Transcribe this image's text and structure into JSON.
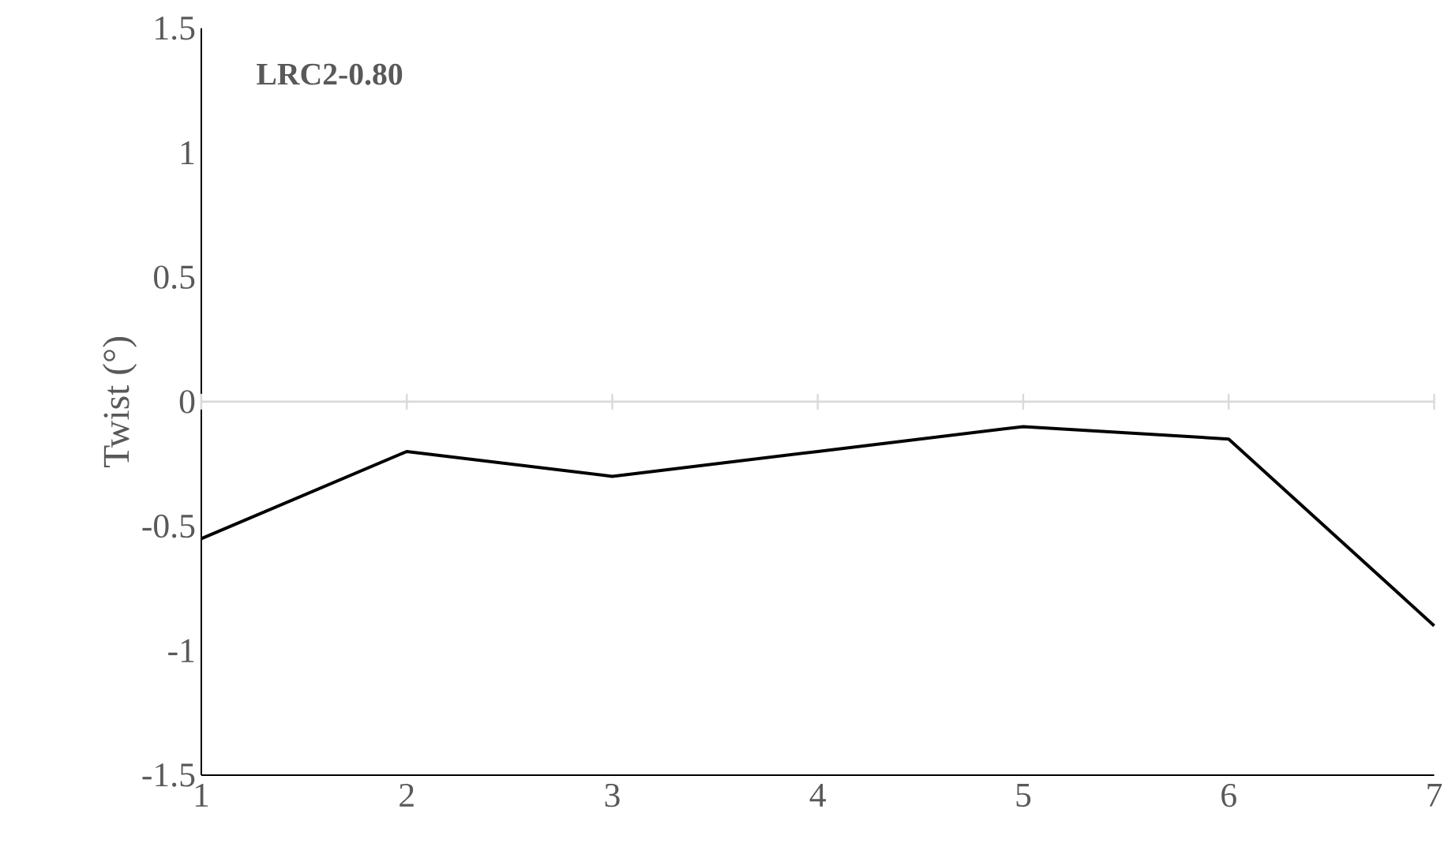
{
  "chart_data": {
    "type": "line",
    "ylabel": "Twist (°)",
    "annotations": [
      "**LRC2-0.80**"
    ],
    "x": [
      1,
      2,
      3,
      4,
      5,
      6,
      7
    ],
    "series": [
      {
        "color": "#000000",
        "values": [
          -0.55,
          -0.2,
          -0.3,
          -0.2,
          -0.1,
          -0.15,
          -0.9
        ]
      }
    ],
    "xlim": [
      1,
      7
    ],
    "xticks": [
      1,
      2,
      3,
      4,
      5,
      6,
      7
    ],
    "ylim": [
      -1.5,
      1.5
    ],
    "yticks": [
      -1.5,
      -1,
      -0.5,
      0,
      0.5,
      1,
      1.5
    ],
    "ref_lines": [
      {
        "axis": "y",
        "value": 0,
        "color": "#d9d9d9"
      }
    ],
    "marker": "none",
    "line_style": "solid"
  }
}
